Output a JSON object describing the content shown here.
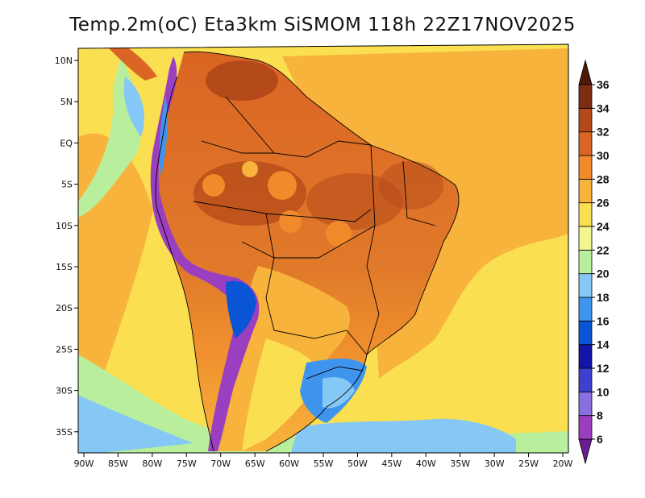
{
  "title": "Temp.2m(oC) Eta3km SiSMOM 118h 22Z17NOV2025",
  "map": {
    "lat_labels": [
      "10N",
      "5N",
      "EQ",
      "5S",
      "10S",
      "15S",
      "20S",
      "25S",
      "30S",
      "35S"
    ],
    "lon_labels": [
      "90W",
      "85W",
      "80W",
      "75W",
      "70W",
      "65W",
      "60W",
      "55W",
      "50W",
      "45W",
      "40W",
      "35W",
      "30W",
      "25W",
      "20W"
    ]
  },
  "colorbar": {
    "levels": [
      "6",
      "8",
      "10",
      "12",
      "14",
      "16",
      "18",
      "20",
      "22",
      "24",
      "26",
      "28",
      "30",
      "32",
      "34",
      "36"
    ],
    "colors": [
      "#6a1d92",
      "#9a3fc0",
      "#8a6fe0",
      "#3f3fcf",
      "#1414a8",
      "#0a55d6",
      "#3f95ee",
      "#86c8f5",
      "#b9ef9c",
      "#f2f590",
      "#fadf51",
      "#f8b33d",
      "#f08a2a",
      "#db6524",
      "#b4491a",
      "#7c2d12",
      "#4a1908"
    ]
  },
  "colors": {
    "ocean_warm": "#f8b33d",
    "ocean_mid": "#fadf51",
    "land_hot": "#db6524",
    "andes": "#6a1d92",
    "border": "#000000"
  }
}
